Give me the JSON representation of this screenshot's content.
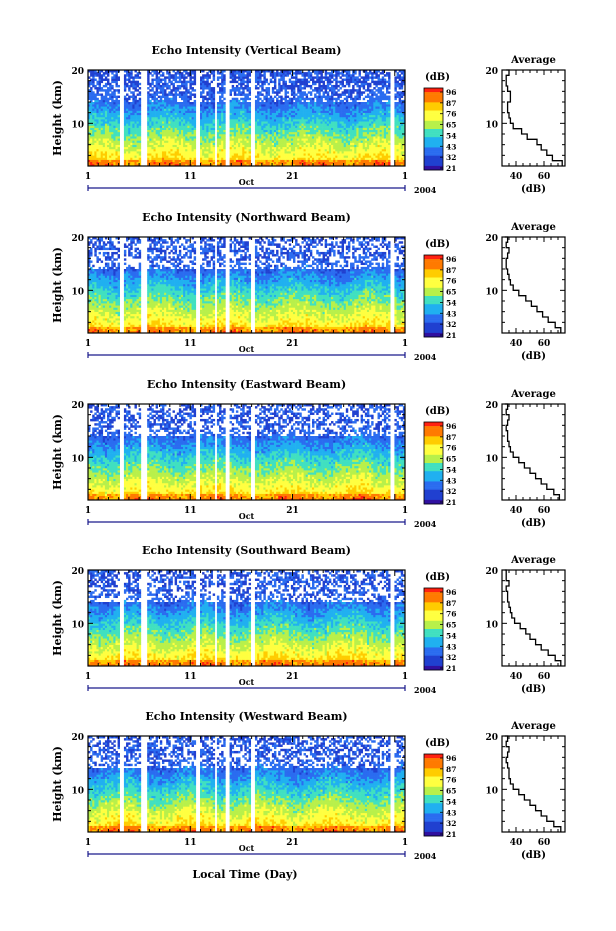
{
  "figure": {
    "year": "2004",
    "month_label": "Oct",
    "bottom_xlabel": "Local Time (Day)"
  },
  "colorbar": {
    "unit_label": "(dB)",
    "ticks": [
      "96",
      "87",
      "76",
      "65",
      "54",
      "43",
      "32",
      "21"
    ],
    "colors": [
      "#ff2010",
      "#ff7a00",
      "#ffcc00",
      "#ffff40",
      "#b8f04a",
      "#40e0c0",
      "#20b0f0",
      "#2a6cf0",
      "#2040d0",
      "#3010a0"
    ]
  },
  "chart_data": [
    {
      "type": "heatmap",
      "title": "Echo Intensity (Vertical Beam)",
      "ylabel": "Height (km)",
      "yticks": [
        "20",
        "10"
      ],
      "ylim": [
        2,
        20
      ],
      "xticks": [
        "1",
        "11",
        "21",
        "1"
      ],
      "xlim": [
        1,
        32
      ],
      "gaps_days": [
        [
          4.0,
          4.5
        ],
        [
          6.2,
          6.8
        ],
        [
          11.6,
          12.0
        ],
        [
          13.4,
          13.7
        ],
        [
          14.4,
          14.9
        ],
        [
          17.0,
          17.3
        ],
        [
          30.6,
          31.0
        ]
      ],
      "colorbar_range_db": [
        21,
        96
      ],
      "average_profile": {
        "title": "Average",
        "xlabel": "(dB)",
        "xticks": [
          "40",
          "60"
        ],
        "xlim": [
          30,
          75
        ],
        "ylim": [
          2,
          20
        ],
        "heights_km": [
          2,
          3,
          4,
          5,
          6,
          7,
          8,
          9,
          10,
          11,
          12,
          13,
          14,
          15,
          16,
          17,
          18,
          19,
          20
        ],
        "db": [
          73,
          66,
          62,
          58,
          55,
          48,
          44,
          38,
          36,
          35,
          34,
          34,
          36,
          36,
          34,
          33,
          33,
          35,
          33
        ]
      }
    },
    {
      "type": "heatmap",
      "title": "Echo Intensity (Northward Beam)",
      "ylabel": "Height (km)",
      "yticks": [
        "20",
        "10"
      ],
      "ylim": [
        2,
        20
      ],
      "xticks": [
        "1",
        "11",
        "21",
        "1"
      ],
      "xlim": [
        1,
        32
      ],
      "gaps_days": [
        [
          4.0,
          4.5
        ],
        [
          6.2,
          6.8
        ],
        [
          11.6,
          12.0
        ],
        [
          13.4,
          13.7
        ],
        [
          14.4,
          14.9
        ],
        [
          17.0,
          17.3
        ],
        [
          30.6,
          31.0
        ]
      ],
      "colorbar_range_db": [
        21,
        96
      ],
      "average_profile": {
        "title": "Average",
        "xlabel": "(dB)",
        "xticks": [
          "40",
          "60"
        ],
        "xlim": [
          30,
          75
        ],
        "ylim": [
          2,
          20
        ],
        "heights_km": [
          2,
          3,
          4,
          5,
          6,
          7,
          8,
          9,
          10,
          11,
          12,
          13,
          14,
          15,
          16,
          17,
          18,
          19,
          20
        ],
        "db": [
          72,
          68,
          63,
          59,
          55,
          51,
          47,
          42,
          38,
          36,
          35,
          34,
          33,
          33,
          34,
          35,
          33,
          34,
          32
        ]
      }
    },
    {
      "type": "heatmap",
      "title": "Echo Intensity (Eastward Beam)",
      "ylabel": "Height (km)",
      "yticks": [
        "20",
        "10"
      ],
      "ylim": [
        2,
        20
      ],
      "xticks": [
        "1",
        "11",
        "21",
        "1"
      ],
      "xlim": [
        1,
        32
      ],
      "gaps_days": [
        [
          4.0,
          4.5
        ],
        [
          6.2,
          6.8
        ],
        [
          11.6,
          12.0
        ],
        [
          13.4,
          13.7
        ],
        [
          14.4,
          14.9
        ],
        [
          17.0,
          17.3
        ],
        [
          30.6,
          31.0
        ]
      ],
      "colorbar_range_db": [
        21,
        96
      ],
      "average_profile": {
        "title": "Average",
        "xlabel": "(dB)",
        "xticks": [
          "40",
          "60"
        ],
        "xlim": [
          30,
          75
        ],
        "ylim": [
          2,
          20
        ],
        "heights_km": [
          2,
          3,
          4,
          5,
          6,
          7,
          8,
          9,
          10,
          11,
          12,
          13,
          14,
          15,
          16,
          17,
          18,
          19,
          20
        ],
        "db": [
          71,
          67,
          62,
          58,
          54,
          50,
          46,
          42,
          38,
          36,
          35,
          34,
          34,
          33,
          34,
          35,
          33,
          34,
          32
        ]
      }
    },
    {
      "type": "heatmap",
      "title": "Echo Intensity (Southward Beam)",
      "ylabel": "Height (km)",
      "yticks": [
        "20",
        "10"
      ],
      "ylim": [
        2,
        20
      ],
      "xticks": [
        "1",
        "11",
        "21",
        "1"
      ],
      "xlim": [
        1,
        32
      ],
      "gaps_days": [
        [
          4.0,
          4.5
        ],
        [
          6.2,
          6.8
        ],
        [
          11.6,
          12.0
        ],
        [
          13.4,
          13.7
        ],
        [
          14.4,
          14.9
        ],
        [
          17.0,
          17.3
        ],
        [
          30.6,
          31.0
        ]
      ],
      "colorbar_range_db": [
        21,
        96
      ],
      "average_profile": {
        "title": "Average",
        "xlabel": "(dB)",
        "xticks": [
          "40",
          "60"
        ],
        "xlim": [
          30,
          75
        ],
        "ylim": [
          2,
          20
        ],
        "heights_km": [
          2,
          3,
          4,
          5,
          6,
          7,
          8,
          9,
          10,
          11,
          12,
          13,
          14,
          15,
          16,
          17,
          18,
          19,
          20
        ],
        "db": [
          72,
          68,
          63,
          58,
          54,
          50,
          47,
          43,
          39,
          37,
          36,
          35,
          34,
          34,
          33,
          35,
          33,
          33,
          32
        ]
      }
    },
    {
      "type": "heatmap",
      "title": "Echo Intensity (Westward Beam)",
      "ylabel": "Height (km)",
      "yticks": [
        "20",
        "10"
      ],
      "ylim": [
        2,
        20
      ],
      "xticks": [
        "1",
        "11",
        "21",
        "1"
      ],
      "xlim": [
        1,
        32
      ],
      "gaps_days": [
        [
          4.0,
          4.5
        ],
        [
          6.2,
          6.8
        ],
        [
          11.6,
          12.0
        ],
        [
          13.4,
          13.7
        ],
        [
          14.4,
          14.9
        ],
        [
          17.0,
          17.3
        ],
        [
          30.6,
          31.0
        ]
      ],
      "colorbar_range_db": [
        21,
        96
      ],
      "average_profile": {
        "title": "Average",
        "xlabel": "(dB)",
        "xticks": [
          "40",
          "60"
        ],
        "xlim": [
          30,
          75
        ],
        "ylim": [
          2,
          20
        ],
        "heights_km": [
          2,
          3,
          4,
          5,
          6,
          7,
          8,
          9,
          10,
          11,
          12,
          13,
          14,
          15,
          16,
          17,
          18,
          19,
          20
        ],
        "db": [
          72,
          67,
          62,
          58,
          54,
          50,
          46,
          42,
          38,
          36,
          35,
          35,
          34,
          33,
          34,
          35,
          33,
          34,
          32
        ]
      }
    }
  ]
}
